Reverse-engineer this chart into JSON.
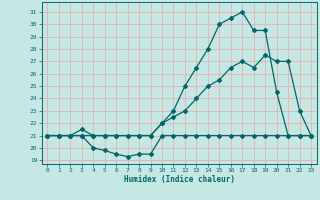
{
  "xlabel": "Humidex (Indice chaleur)",
  "ylabel": "",
  "bg_color": "#c6e8e4",
  "grid_color": "#e8b0b0",
  "line_color": "#006868",
  "xlim": [
    -0.5,
    23.5
  ],
  "ylim": [
    18.7,
    31.8
  ],
  "yticks": [
    19,
    20,
    21,
    22,
    23,
    24,
    25,
    26,
    27,
    28,
    29,
    30,
    31
  ],
  "xticks": [
    0,
    1,
    2,
    3,
    4,
    5,
    6,
    7,
    8,
    9,
    10,
    11,
    12,
    13,
    14,
    15,
    16,
    17,
    18,
    19,
    20,
    21,
    22,
    23
  ],
  "series": [
    {
      "x": [
        0,
        1,
        2,
        3,
        4,
        5,
        6,
        7,
        8,
        9,
        10,
        11,
        12,
        13,
        14,
        15,
        16,
        17,
        18,
        19,
        20,
        21,
        22,
        23
      ],
      "y": [
        21,
        21,
        21,
        21,
        20,
        19.8,
        19.5,
        19.3,
        19.5,
        19.5,
        21,
        21,
        21,
        21,
        21,
        21,
        21,
        21,
        21,
        21,
        21,
        21,
        21,
        21
      ]
    },
    {
      "x": [
        0,
        1,
        2,
        3,
        4,
        5,
        6,
        7,
        8,
        9,
        10,
        11,
        12,
        13,
        14,
        15,
        16,
        17,
        18,
        19,
        20,
        21,
        22,
        23
      ],
      "y": [
        21,
        21,
        21,
        21,
        21,
        21,
        21,
        21,
        21,
        21,
        22,
        22.5,
        23,
        24,
        25,
        25.5,
        26.5,
        27,
        26.5,
        27.5,
        27,
        27,
        23,
        21
      ]
    },
    {
      "x": [
        0,
        1,
        2,
        3,
        4,
        5,
        6,
        7,
        8,
        9,
        10,
        11,
        12,
        13,
        14,
        15,
        16,
        17,
        18,
        19,
        20,
        21,
        22,
        23
      ],
      "y": [
        21,
        21,
        21,
        21.5,
        21,
        21,
        21,
        21,
        21,
        21,
        22,
        23,
        25,
        26.5,
        28,
        30,
        30.5,
        31,
        29.5,
        29.5,
        24.5,
        21,
        21,
        21
      ]
    }
  ]
}
